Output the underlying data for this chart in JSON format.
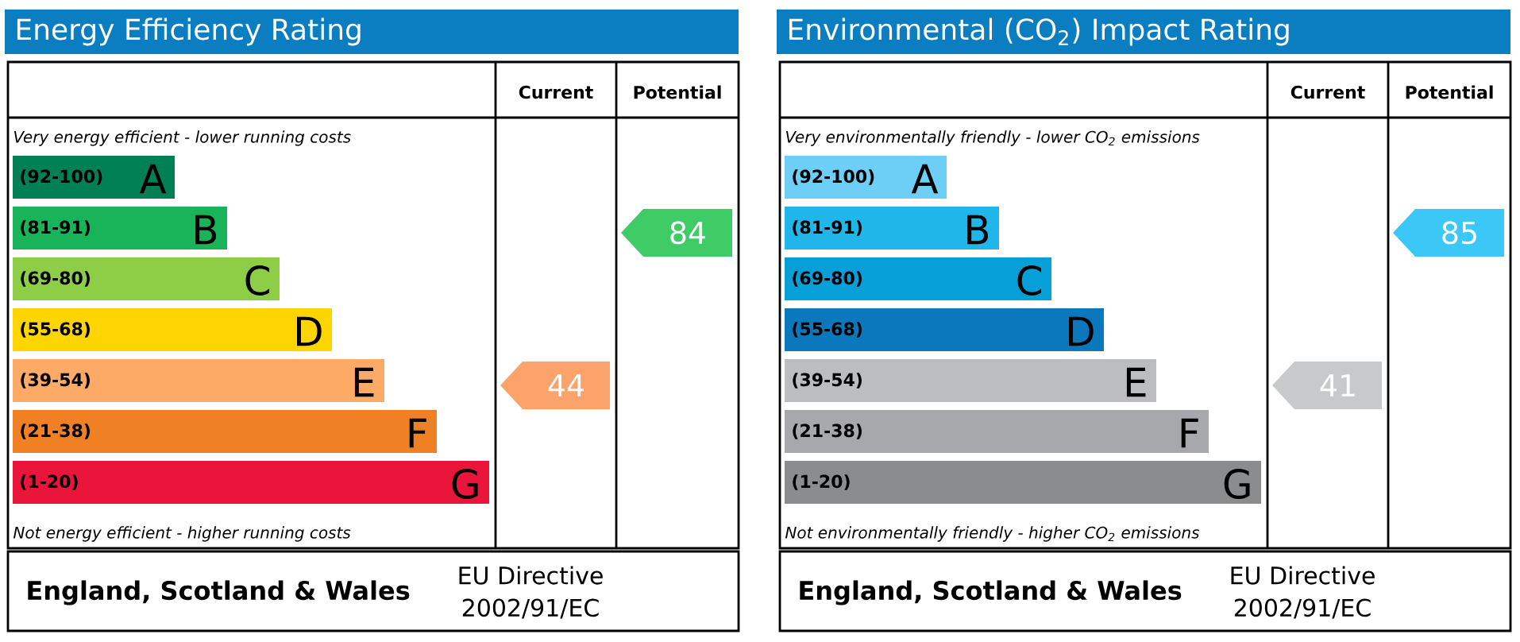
{
  "chart_data": [
    {
      "type": "other",
      "title": "Energy Efficiency Rating",
      "categories": [
        "(92-100)",
        "(81-91)",
        "(69-80)",
        "(55-68)",
        "(39-54)",
        "(21-38)",
        "(1-20)"
      ],
      "y2_categories": [
        "A",
        "B",
        "C",
        "D",
        "E",
        "F",
        "G"
      ],
      "colors": [
        "#008054",
        "#19b459",
        "#8dce46",
        "#ffd500",
        "#fcaa65",
        "#ef8023",
        "#e9153b"
      ],
      "series": [
        {
          "color": "#fba36a",
          "values": [
            null,
            null,
            null,
            null,
            44,
            null,
            null
          ]
        },
        {
          "color": "#3fcc66",
          "values": [
            null,
            84,
            null,
            null,
            null,
            null,
            null
          ]
        }
      ],
      "data_labels": true,
      "annotations": [
        "Very energy efficient - lower running costs",
        "Not energy efficient - higher running costs",
        "England, Scotland & Wales",
        "EU Directive",
        "2002/91/EC",
        "Current",
        "Potential"
      ]
    },
    {
      "type": "other",
      "title": "Environmental (CO$_{2}$) Impact Rating",
      "categories": [
        "(92-100)",
        "(81-91)",
        "(69-80)",
        "(55-68)",
        "(39-54)",
        "(21-38)",
        "(1-20)"
      ],
      "y2_categories": [
        "A",
        "B",
        "C",
        "D",
        "E",
        "F",
        "G"
      ],
      "colors": [
        "#6ecff6",
        "#21b6e9",
        "#069fd8",
        "#0b78be",
        "#bbbdbf",
        "#a6a8ab",
        "#8a8c8e"
      ],
      "series": [
        {
          "color": "#c8c9cb",
          "values": [
            null,
            null,
            null,
            null,
            41,
            null,
            null
          ]
        },
        {
          "color": "#3bc8f6",
          "values": [
            null,
            85,
            null,
            null,
            null,
            null,
            null
          ]
        }
      ],
      "data_labels": true,
      "annotations": [
        "Very environmentally friendly - lower CO$_{2}$ emissions",
        "Not environmentally friendly - higher CO$_{2}$ emissions",
        "England, Scotland & Wales",
        "EU Directive",
        "2002/91/EC",
        "Current",
        "Potential"
      ]
    }
  ]
}
